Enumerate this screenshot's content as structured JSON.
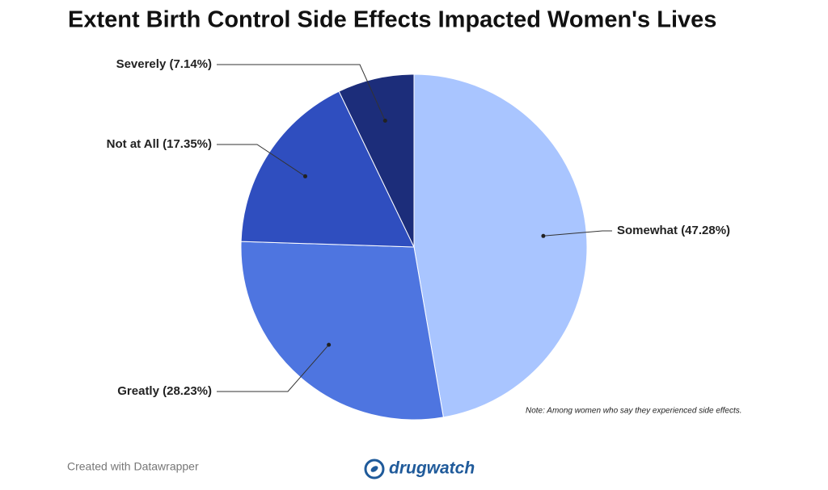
{
  "chart_data": {
    "type": "pie",
    "title": "Extent Birth Control Side Effects Impacted Women's Lives",
    "categories": [
      "Somewhat",
      "Greatly",
      "Not at All",
      "Severely"
    ],
    "values": [
      47.28,
      28.23,
      17.35,
      7.14
    ],
    "value_labels": [
      "(47.28%)",
      "(28.23%)",
      "(17.35%)",
      "(7.14%)"
    ],
    "colors": [
      "#a9c5ff",
      "#4e75e0",
      "#2f4ebf",
      "#1c2d7a"
    ],
    "note": "Note: Among women who say they experienced side effects.",
    "source": "Created with Datawrapper",
    "brand": "drugwatch"
  }
}
